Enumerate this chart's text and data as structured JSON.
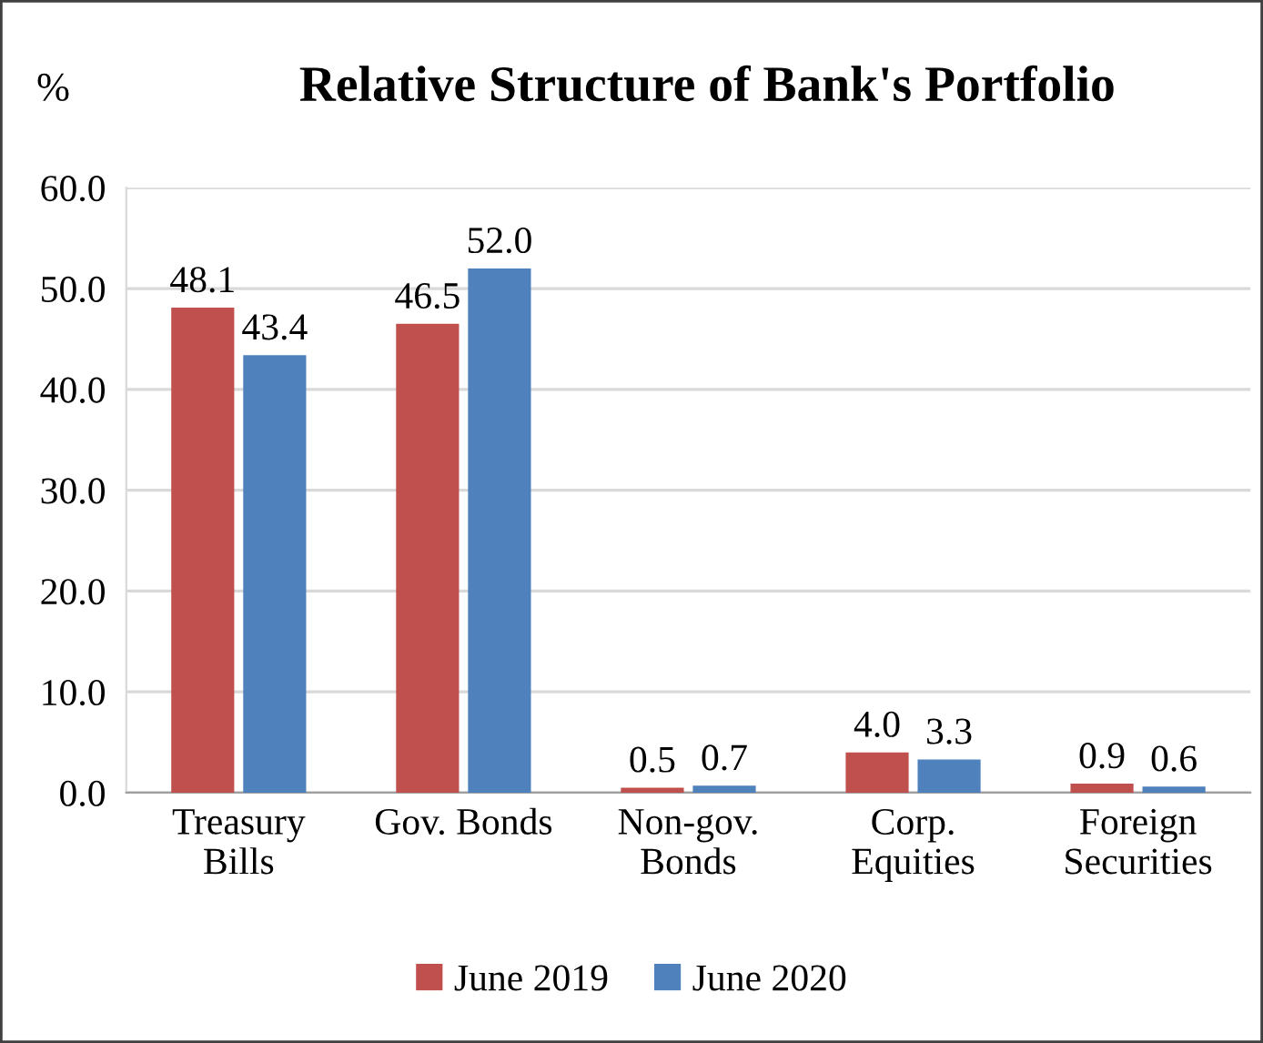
{
  "chart_data": {
    "type": "bar",
    "title": "Relative Structure of Bank's Portfolio",
    "ylabel": "%",
    "categories": [
      "Treasury\nBills",
      "Gov. Bonds",
      "Non-gov.\nBonds",
      "Corp.\nEquities",
      "Foreign\nSecurities"
    ],
    "series": [
      {
        "name": "June 2019",
        "color": "#c0504d",
        "values": [
          48.1,
          46.5,
          0.5,
          4.0,
          0.9
        ],
        "value_labels": [
          "48.1",
          "46.5",
          "0.5",
          "4.0",
          "0.9"
        ]
      },
      {
        "name": "June 2020",
        "color": "#4f81bd",
        "values": [
          43.4,
          52.0,
          0.7,
          3.3,
          0.6
        ],
        "value_labels": [
          "43.4",
          "52.0",
          "0.7",
          "3.3",
          "0.6"
        ]
      }
    ],
    "ylim": [
      0,
      60
    ],
    "yticks": [
      {
        "value": 0,
        "label": "0.0"
      },
      {
        "value": 10,
        "label": "10.0"
      },
      {
        "value": 20,
        "label": "20.0"
      },
      {
        "value": 30,
        "label": "30.0"
      },
      {
        "value": 40,
        "label": "40.0"
      },
      {
        "value": 50,
        "label": "50.0"
      },
      {
        "value": 60,
        "label": "60.0"
      }
    ],
    "grid": "y",
    "legend": "bottom"
  }
}
